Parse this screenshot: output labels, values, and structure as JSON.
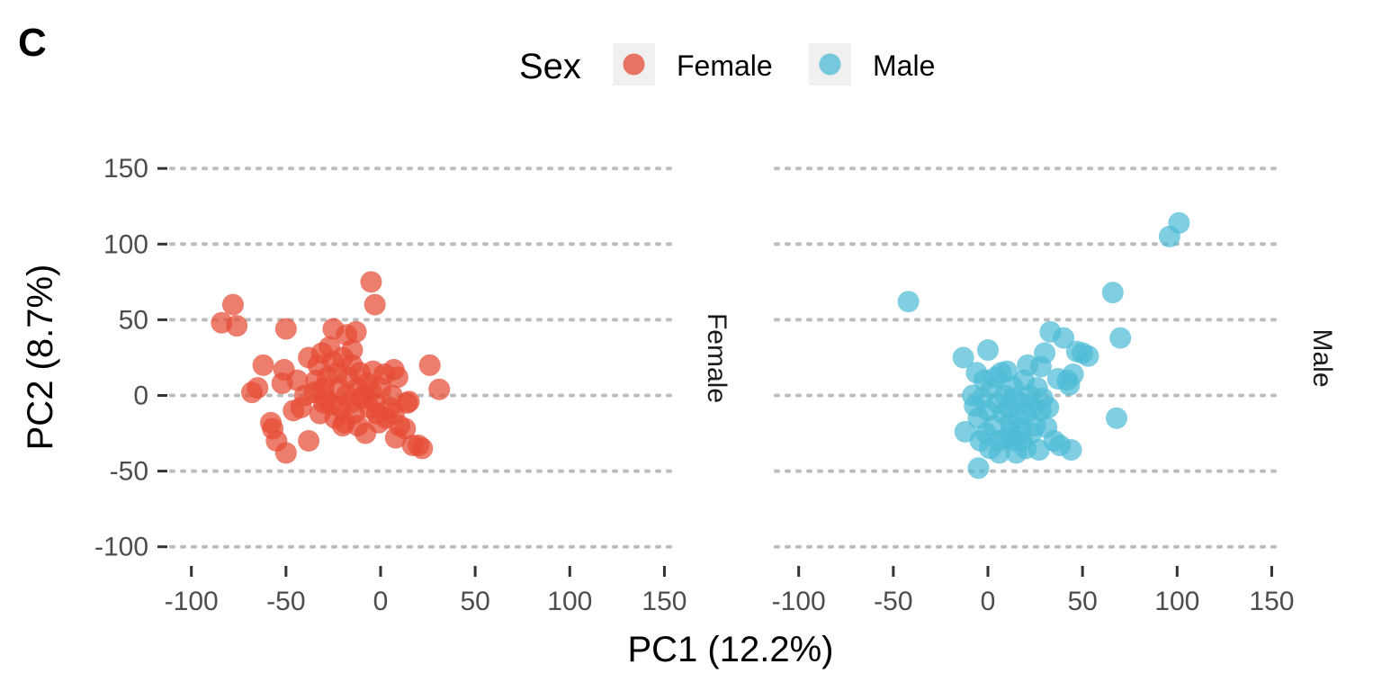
{
  "panel_tag": "C",
  "legend": {
    "title": "Sex",
    "items": [
      {
        "label": "Female",
        "color": "#E64B35"
      },
      {
        "label": "Male",
        "color": "#4DBBD5"
      }
    ]
  },
  "chart_data": {
    "type": "scatter",
    "xlabel": "PC1 (12.2%)",
    "ylabel": "PC2 (8.7%)",
    "xlim": [
      -100,
      150
    ],
    "ylim": [
      -100,
      150
    ],
    "x_ticks": [
      "-100",
      "-50",
      "0",
      "50",
      "100",
      "150"
    ],
    "y_ticks": [
      "150",
      "100",
      "50",
      "0",
      "-50",
      "-100"
    ],
    "gridlines": "horizontal dotted",
    "legend_position": "top",
    "facets": [
      "Female",
      "Male"
    ],
    "series": [
      {
        "name": "Female",
        "facet": "Female",
        "color": "#E64B35",
        "points": [
          [
            -84,
            48
          ],
          [
            -78,
            60
          ],
          [
            -76,
            46
          ],
          [
            -68,
            2
          ],
          [
            -65,
            5
          ],
          [
            -62,
            20
          ],
          [
            -58,
            -18
          ],
          [
            -57,
            -22
          ],
          [
            -55,
            -30
          ],
          [
            -52,
            8
          ],
          [
            -51,
            17
          ],
          [
            -50,
            44
          ],
          [
            -50,
            -38
          ],
          [
            -46,
            -10
          ],
          [
            -44,
            10
          ],
          [
            -42,
            -8
          ],
          [
            -38,
            -30
          ],
          [
            -38,
            25
          ],
          [
            -35,
            2
          ],
          [
            -34,
            10
          ],
          [
            -33,
            20
          ],
          [
            -32,
            -12
          ],
          [
            -31,
            28
          ],
          [
            -30,
            5
          ],
          [
            -29,
            -2
          ],
          [
            -28,
            12
          ],
          [
            -27,
            32
          ],
          [
            -26,
            -6
          ],
          [
            -25,
            44
          ],
          [
            -25,
            22
          ],
          [
            -24,
            -15
          ],
          [
            -23,
            15
          ],
          [
            -22,
            5
          ],
          [
            -21,
            -8
          ],
          [
            -20,
            25
          ],
          [
            -19,
            -18
          ],
          [
            -18,
            0
          ],
          [
            -18,
            40
          ],
          [
            -17,
            12
          ],
          [
            -16,
            -5
          ],
          [
            -15,
            20
          ],
          [
            -15,
            30
          ],
          [
            -14,
            -12
          ],
          [
            -13,
            42
          ],
          [
            -12,
            5
          ],
          [
            -12,
            -20
          ],
          [
            -11,
            15
          ],
          [
            -10,
            -2
          ],
          [
            -9,
            0
          ],
          [
            -8,
            -25
          ],
          [
            -7,
            8
          ],
          [
            -6,
            -8
          ],
          [
            -5,
            75
          ],
          [
            -5,
            3
          ],
          [
            -4,
            16
          ],
          [
            -3,
            60
          ],
          [
            -3,
            -5
          ],
          [
            -2,
            -12
          ],
          [
            -1,
            -18
          ],
          [
            0,
            5
          ],
          [
            2,
            14
          ],
          [
            3,
            -15
          ],
          [
            5,
            -8
          ],
          [
            6,
            0
          ],
          [
            7,
            17
          ],
          [
            7,
            -12
          ],
          [
            8,
            -28
          ],
          [
            9,
            12
          ],
          [
            10,
            -20
          ],
          [
            13,
            -22
          ],
          [
            14,
            -5
          ],
          [
            15,
            -4
          ],
          [
            17,
            -33
          ],
          [
            20,
            -33
          ],
          [
            22,
            -35
          ],
          [
            26,
            20
          ],
          [
            31,
            4
          ],
          [
            -20,
            -20
          ],
          [
            -30,
            -5
          ],
          [
            -40,
            0
          ]
        ]
      },
      {
        "name": "Male",
        "facet": "Male",
        "color": "#4DBBD5",
        "points": [
          [
            -42,
            62
          ],
          [
            -13,
            25
          ],
          [
            -12,
            -24
          ],
          [
            -8,
            0
          ],
          [
            -7,
            -7
          ],
          [
            -6,
            15
          ],
          [
            -5,
            -48
          ],
          [
            -5,
            -15
          ],
          [
            -4,
            -30
          ],
          [
            -3,
            -2
          ],
          [
            -2,
            10
          ],
          [
            -1,
            -25
          ],
          [
            0,
            30
          ],
          [
            0,
            -10
          ],
          [
            1,
            -35
          ],
          [
            2,
            5
          ],
          [
            3,
            -20
          ],
          [
            4,
            12
          ],
          [
            5,
            -5
          ],
          [
            6,
            -38
          ],
          [
            7,
            15
          ],
          [
            8,
            -12
          ],
          [
            9,
            0
          ],
          [
            10,
            -28
          ],
          [
            10,
            16
          ],
          [
            11,
            -8
          ],
          [
            12,
            -18
          ],
          [
            13,
            6
          ],
          [
            14,
            -2
          ],
          [
            14,
            -30
          ],
          [
            15,
            -38
          ],
          [
            16,
            -15
          ],
          [
            17,
            -22
          ],
          [
            18,
            -5
          ],
          [
            19,
            10
          ],
          [
            20,
            -35
          ],
          [
            20,
            -12
          ],
          [
            21,
            20
          ],
          [
            22,
            0
          ],
          [
            23,
            -25
          ],
          [
            24,
            -8
          ],
          [
            25,
            -20
          ],
          [
            26,
            5
          ],
          [
            27,
            -36
          ],
          [
            28,
            -10
          ],
          [
            28,
            19
          ],
          [
            29,
            -2
          ],
          [
            30,
            28
          ],
          [
            31,
            -21
          ],
          [
            32,
            -8
          ],
          [
            33,
            42
          ],
          [
            35,
            -30
          ],
          [
            37,
            11
          ],
          [
            38,
            -33
          ],
          [
            40,
            38
          ],
          [
            42,
            10
          ],
          [
            43,
            7
          ],
          [
            44,
            -36
          ],
          [
            45,
            14
          ],
          [
            47,
            29
          ],
          [
            50,
            28
          ],
          [
            53,
            26
          ],
          [
            66,
            68
          ],
          [
            68,
            -15
          ],
          [
            70,
            38
          ],
          [
            96,
            105
          ],
          [
            101,
            114
          ],
          [
            18,
            -30
          ],
          [
            12,
            -25
          ],
          [
            6,
            -30
          ]
        ]
      }
    ]
  }
}
